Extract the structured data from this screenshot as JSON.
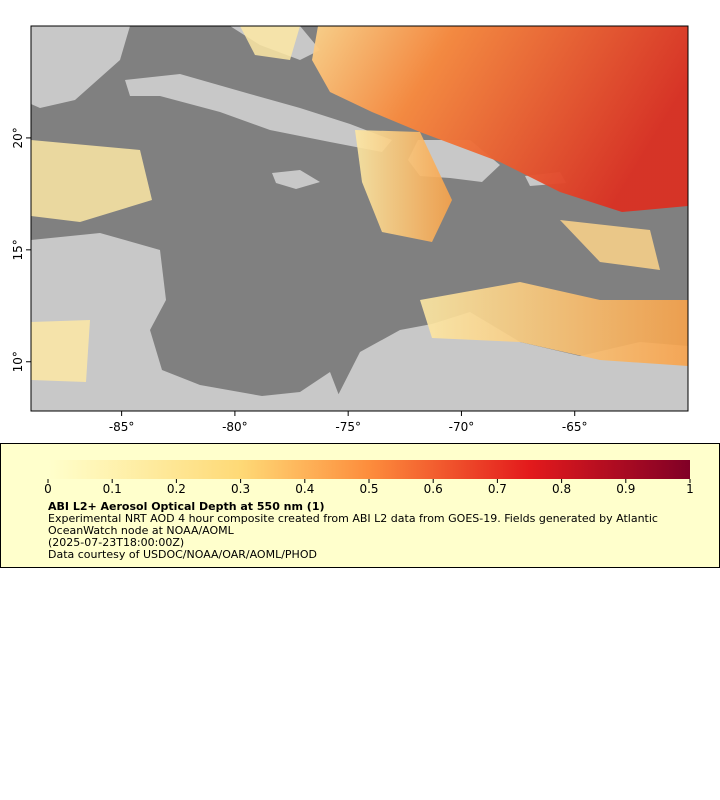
{
  "map": {
    "xlim": [
      -89,
      -60
    ],
    "ylim": [
      7.8,
      25
    ],
    "xticks": [
      {
        "value": -85,
        "label": "-85°"
      },
      {
        "value": -80,
        "label": "-80°"
      },
      {
        "value": -75,
        "label": "-75°"
      },
      {
        "value": -70,
        "label": "-70°"
      },
      {
        "value": -65,
        "label": "-65°"
      }
    ],
    "yticks": [
      {
        "value": 20,
        "label": "20°"
      },
      {
        "value": 15,
        "label": "15°"
      },
      {
        "value": 10,
        "label": "10°"
      }
    ]
  },
  "legend": {
    "colorbar_lim": [
      0,
      1
    ],
    "colorbar_ticks": [
      0,
      0.1,
      0.2,
      0.3,
      0.4,
      0.5,
      0.6,
      0.7,
      0.8,
      0.9,
      1
    ],
    "title": "ABI L2+ Aerosol Optical Depth at 550 nm (1)",
    "description": "Experimental NRT AOD 4 hour composite created from ABI L2 data from GOES-19. Fields generated by Atlantic OceanWatch node at NOAA/AOML",
    "time": "(2025-07-23T18:00:00Z)",
    "credit": "Data courtesy of USDOC/NOAA/OAR/AOML/PHOD"
  }
}
